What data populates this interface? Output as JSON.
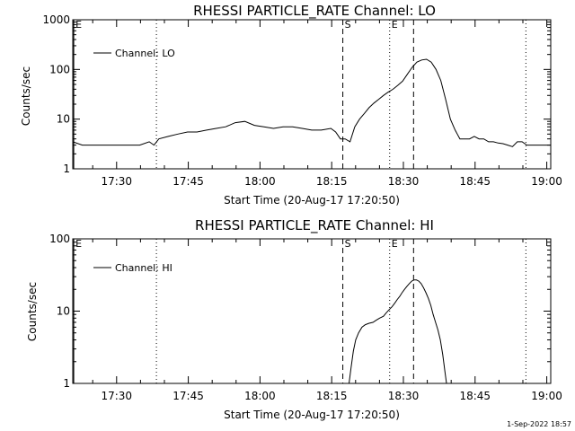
{
  "colors": {
    "background": "#ffffff",
    "foreground": "#000000"
  },
  "footer": {
    "timestamp": "1-Sep-2022 18:57"
  },
  "chart_data": [
    {
      "type": "line",
      "title": "RHESSI PARTICLE_RATE Channel: LO",
      "xlabel": "Start Time (20-Aug-17 17:20:50)",
      "ylabel": "Counts/sec",
      "x_units": "minutes since 17:20:50",
      "xlim": [
        0,
        100
      ],
      "ylim": [
        1,
        1000
      ],
      "y_scale": "log",
      "x_ticks": [
        {
          "label": "17:30",
          "value": 9.17
        },
        {
          "label": "17:45",
          "value": 24.17
        },
        {
          "label": "18:00",
          "value": 39.17
        },
        {
          "label": "18:15",
          "value": 54.17
        },
        {
          "label": "18:30",
          "value": 69.17
        },
        {
          "label": "18:45",
          "value": 84.17
        },
        {
          "label": "19:00",
          "value": 99.17
        }
      ],
      "y_ticks": [
        {
          "label": "1",
          "value": 1
        },
        {
          "label": "10",
          "value": 10
        },
        {
          "label": "100",
          "value": 100
        },
        {
          "label": "1000",
          "value": 1000
        }
      ],
      "legend": {
        "entries": [
          "Channel: LO"
        ],
        "position": "top-left"
      },
      "markers": [
        {
          "x": 0.2,
          "style": "solid",
          "label": "E"
        },
        {
          "x": 17.5,
          "style": "dotted",
          "label": ""
        },
        {
          "x": 56.5,
          "style": "dashed",
          "label": "S"
        },
        {
          "x": 66.3,
          "style": "dotted",
          "label": "E"
        },
        {
          "x": 71.3,
          "style": "dashed",
          "label": ""
        },
        {
          "x": 94.8,
          "style": "dotted",
          "label": ""
        }
      ],
      "series": [
        {
          "name": "Channel: LO",
          "x": [
            0,
            2,
            4,
            6,
            8,
            10,
            12,
            14,
            16,
            17,
            18,
            20,
            22,
            24,
            26,
            28,
            30,
            32,
            34,
            36,
            38,
            40,
            42,
            44,
            46,
            48,
            50,
            52,
            54,
            55,
            56,
            57,
            58,
            59,
            60,
            61,
            62,
            63,
            64,
            65,
            66,
            67,
            68,
            69,
            70,
            71,
            72,
            73,
            74,
            75,
            76,
            77,
            78,
            79,
            80,
            81,
            82,
            83,
            84,
            85,
            86,
            87,
            88,
            89,
            90,
            91,
            92,
            93,
            94,
            95,
            96,
            97,
            98,
            99,
            100
          ],
          "y": [
            3.5,
            3,
            3,
            3,
            3,
            3,
            3,
            3,
            3.5,
            3,
            4,
            4.5,
            5,
            5.5,
            5.5,
            6,
            6.5,
            7,
            8.5,
            9,
            7.5,
            7,
            6.5,
            7,
            7,
            6.5,
            6,
            6,
            6.5,
            5.5,
            4,
            4,
            3.5,
            7,
            10,
            13,
            17,
            21,
            25,
            30,
            35,
            40,
            48,
            58,
            80,
            110,
            140,
            155,
            160,
            140,
            100,
            60,
            25,
            10,
            6,
            4,
            4,
            4,
            4.5,
            4,
            4,
            3.5,
            3.5,
            3.3,
            3.2,
            3,
            2.8,
            3.5,
            3.5,
            3,
            3,
            3,
            3,
            3,
            3
          ]
        }
      ]
    },
    {
      "type": "line",
      "title": "RHESSI PARTICLE_RATE Channel: HI",
      "xlabel": "Start Time (20-Aug-17 17:20:50)",
      "ylabel": "Counts/sec",
      "x_units": "minutes since 17:20:50",
      "xlim": [
        0,
        100
      ],
      "ylim": [
        1,
        100
      ],
      "y_scale": "log",
      "x_ticks": [
        {
          "label": "17:30",
          "value": 9.17
        },
        {
          "label": "17:45",
          "value": 24.17
        },
        {
          "label": "18:00",
          "value": 39.17
        },
        {
          "label": "18:15",
          "value": 54.17
        },
        {
          "label": "18:30",
          "value": 69.17
        },
        {
          "label": "18:45",
          "value": 84.17
        },
        {
          "label": "19:00",
          "value": 99.17
        }
      ],
      "y_ticks": [
        {
          "label": "1",
          "value": 1
        },
        {
          "label": "10",
          "value": 10
        },
        {
          "label": "100",
          "value": 100
        }
      ],
      "legend": {
        "entries": [
          "Channel: HI"
        ],
        "position": "top-left"
      },
      "markers": [
        {
          "x": 0.2,
          "style": "solid",
          "label": "E"
        },
        {
          "x": 17.5,
          "style": "dotted",
          "label": ""
        },
        {
          "x": 56.5,
          "style": "dashed",
          "label": "S"
        },
        {
          "x": 66.3,
          "style": "dotted",
          "label": "E"
        },
        {
          "x": 71.3,
          "style": "dashed",
          "label": ""
        },
        {
          "x": 94.8,
          "style": "dotted",
          "label": ""
        }
      ],
      "series": [
        {
          "name": "Channel: HI",
          "x": [
            57.8,
            58.2,
            58.7,
            59.2,
            59.8,
            60.5,
            61.2,
            62,
            62.8,
            63.5,
            64.2,
            65,
            65.6,
            66.2,
            66.8,
            67.4,
            67.9,
            68.4,
            68.9,
            69.4,
            69.9,
            70.4,
            70.9,
            71.4,
            71.9,
            72.4,
            72.9,
            73.4,
            73.9,
            74.4,
            74.9,
            75.4,
            75.9,
            76.4,
            76.9,
            77.4,
            77.9,
            78.2
          ],
          "y": [
            1,
            1.6,
            2.8,
            4,
            5,
            6,
            6.5,
            6.8,
            7,
            7.5,
            8,
            8.5,
            9.5,
            10.5,
            11.5,
            13,
            14.5,
            16,
            18,
            20,
            22,
            24,
            26,
            27,
            27,
            26,
            24,
            21,
            18,
            15,
            12,
            9,
            7,
            5.5,
            4,
            2.5,
            1.4,
            1
          ]
        }
      ]
    }
  ]
}
